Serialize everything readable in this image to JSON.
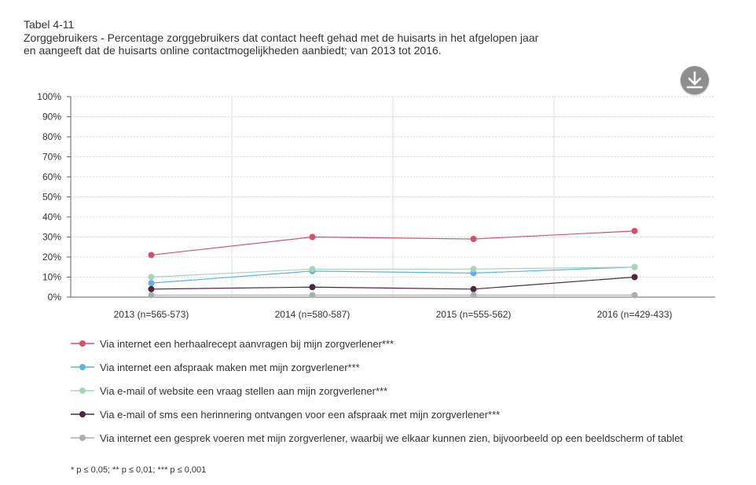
{
  "header": {
    "table_label": "Tabel 4-11",
    "title": "Zorggebruikers - Percentage zorggebruikers dat contact heeft gehad met de huisarts in het afgelopen jaar en aangeeft dat de huisarts online contactmogelijkheden aanbiedt; van 2013 tot 2016."
  },
  "download": {
    "icon": "download-icon"
  },
  "footnote": "* p ≤ 0,05; ** p ≤ 0,01; *** p ≤ 0,001",
  "chart_data": {
    "type": "line",
    "categories": [
      "2013 (n=565-573)",
      "2014 (n=580-587)",
      "2015 (n=555-562)",
      "2016 (n=429-433)"
    ],
    "y_ticks": [
      "0%",
      "10%",
      "20%",
      "30%",
      "40%",
      "50%",
      "60%",
      "70%",
      "80%",
      "90%",
      "100%"
    ],
    "ylim": [
      0,
      100
    ],
    "grid": true,
    "legend_position": "bottom",
    "series": [
      {
        "name": "Via internet een herhaalrecept aanvragen bij mijn zorgverlener***",
        "color": "#d4506a",
        "values": [
          21,
          30,
          29,
          33
        ]
      },
      {
        "name": "Via internet een afspraak maken met mijn zorgverlener***",
        "color": "#5ab4e0",
        "values": [
          7,
          13,
          12,
          15
        ]
      },
      {
        "name": "Via e-mail of website een vraag stellen aan mijn zorgverlener***",
        "color": "#a8d3b9",
        "values": [
          10,
          14,
          14,
          15
        ]
      },
      {
        "name": "Via e-mail of sms een herinnering ontvangen voor een afspraak met mijn zorgverlener***",
        "color": "#4a2840",
        "values": [
          4,
          5,
          4,
          10
        ]
      },
      {
        "name": "Via internet een gesprek voeren met mijn zorgverlener, waarbij we elkaar kunnen zien, bijvoorbeeld op een beeldscherm of tablet",
        "color": "#a9aeb1",
        "values": [
          1,
          1,
          1,
          1
        ]
      }
    ]
  }
}
